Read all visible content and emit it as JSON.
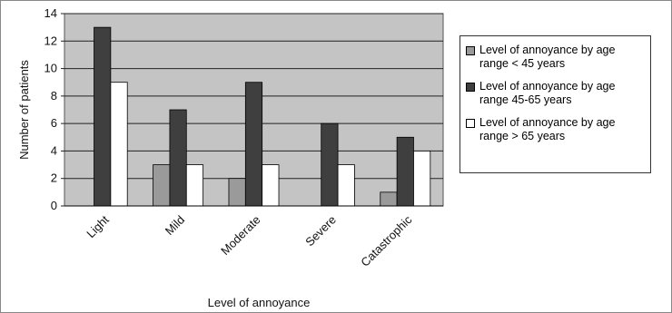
{
  "chart_data": {
    "type": "bar",
    "x_label": "Level of annoyance",
    "y_label": "Number of patients",
    "categories": [
      "Light",
      "Mild",
      "Moderate",
      "Severe",
      "Catastrophic"
    ],
    "series": [
      {
        "name": "Level of annoyance by age range < 45 years",
        "color": "#9a9a9a",
        "values": [
          0,
          3,
          2,
          0,
          1
        ]
      },
      {
        "name": "Level of annoyance by age range 45-65 years",
        "color": "#3f3f3f",
        "values": [
          13,
          7,
          9,
          6,
          5
        ]
      },
      {
        "name": "Level of annoyance by age range > 65 years",
        "color": "#ffffff",
        "values": [
          9,
          3,
          3,
          3,
          4
        ]
      }
    ],
    "ylim": [
      0,
      14
    ],
    "yticks": [
      0,
      2,
      4,
      6,
      8,
      10,
      12,
      14
    ],
    "grid": true,
    "legend": "right"
  }
}
